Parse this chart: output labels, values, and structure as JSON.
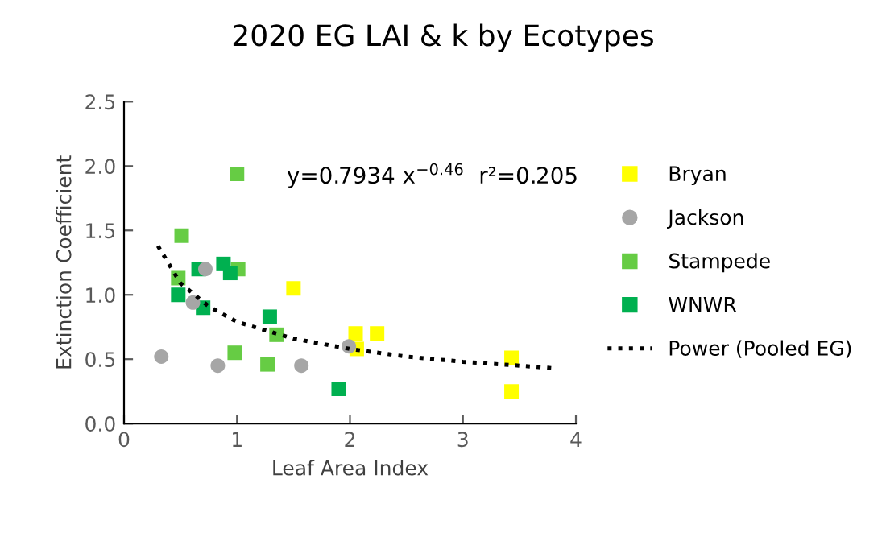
{
  "chart_data": {
    "type": "scatter",
    "title": "2020 EG LAI & k by Ecotypes",
    "xlabel": "Leaf Area Index",
    "ylabel": "Extinction Coefficient",
    "xlim": [
      0,
      4
    ],
    "xticks": [
      0,
      1,
      2,
      3,
      4
    ],
    "ylim": [
      0,
      2.5
    ],
    "yticks": [
      {
        "value": 0,
        "label": "0.0"
      },
      {
        "value": 0.5,
        "label": "0.5"
      },
      {
        "value": 1,
        "label": "1.0"
      },
      {
        "value": 1.5,
        "label": "1.5"
      },
      {
        "value": 2,
        "label": "2.0"
      },
      {
        "value": 2.5,
        "label": "2.5"
      }
    ],
    "grid": false,
    "legend": "right",
    "annotations": [
      "y=0.7934 x$^{−0.46}$  r²=0.205"
    ],
    "series": [
      {
        "name": "Bryan",
        "color": "#ffff00",
        "marker": "square",
        "x": [
          1.5,
          2.05,
          2.06,
          2.24,
          3.43,
          3.43
        ],
        "values": [
          1.05,
          0.7,
          0.58,
          0.7,
          0.51,
          0.25
        ]
      },
      {
        "name": "Jackson",
        "color": "#a6a6a6",
        "marker": "circle",
        "x": [
          0.33,
          0.61,
          0.72,
          0.83,
          1.57,
          1.99
        ],
        "values": [
          0.52,
          0.94,
          1.2,
          0.45,
          0.45,
          0.6
        ]
      },
      {
        "name": "Stampede",
        "color": "#66cc44",
        "marker": "square",
        "x": [
          1.0,
          0.51,
          1.01,
          0.48,
          0.98,
          1.27,
          1.35
        ],
        "values": [
          1.94,
          1.46,
          1.2,
          1.13,
          0.55,
          0.46,
          0.69
        ]
      },
      {
        "name": "WNWR",
        "color": "#00b050",
        "marker": "square",
        "x": [
          0.66,
          0.88,
          0.94,
          0.48,
          0.7,
          1.29,
          1.9
        ],
        "values": [
          1.2,
          1.24,
          1.17,
          1.0,
          0.9,
          0.83,
          0.27
        ]
      },
      {
        "name": "Power (Pooled EG)",
        "type": "line",
        "color": "#000000",
        "line_style": "dotted",
        "marker": "none",
        "x": [
          0.3,
          0.5,
          0.75,
          1,
          1.5,
          2,
          2.5,
          3,
          3.5,
          3.8
        ],
        "values": [
          1.38,
          1.09,
          0.91,
          0.79,
          0.66,
          0.58,
          0.52,
          0.48,
          0.45,
          0.43
        ]
      }
    ]
  }
}
